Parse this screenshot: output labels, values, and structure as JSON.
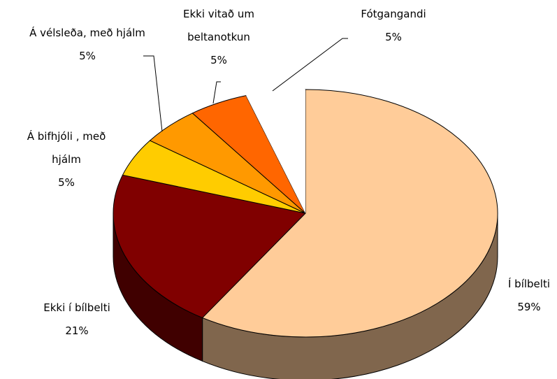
{
  "chart_data": {
    "type": "pie3d",
    "categories": [
      "Í bílbelti",
      "Ekki í bílbelti",
      "Á bifhjóli , með hjálm",
      "Á vélsleða, með hjálm",
      "Ekki vitað um beltanotkun",
      "Fótgangandi"
    ],
    "values": [
      59,
      21,
      5,
      5,
      5,
      5
    ],
    "value_labels": [
      "59%",
      "21%",
      "5%",
      "5%",
      "5%",
      "5%"
    ],
    "colors": [
      "#ffcc99",
      "#800000",
      "#ffcc00",
      "#ff9900",
      "#ff6600",
      "#ffffff"
    ]
  }
}
